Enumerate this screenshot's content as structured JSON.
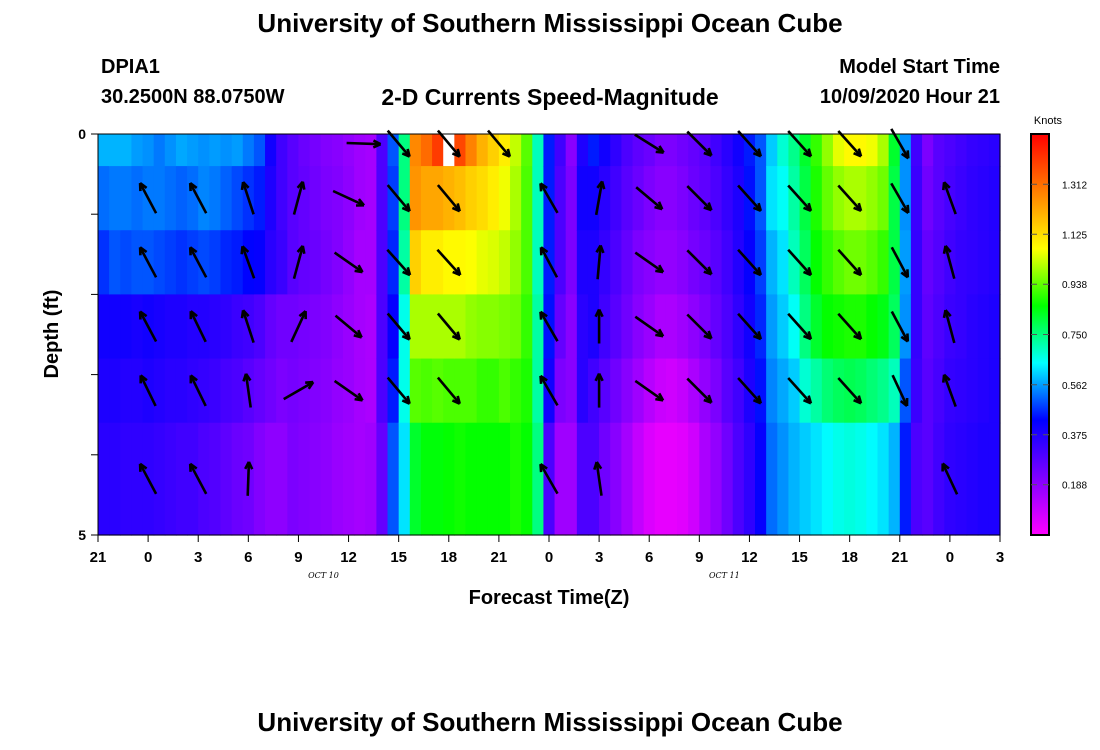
{
  "title": "University of Southern Mississippi Ocean Cube",
  "footer_title": "University of Southern Mississippi Ocean Cube",
  "station": {
    "id": "DPIA1",
    "location": "30.2500N 88.0750W"
  },
  "model_start": {
    "label": "Model Start Time",
    "value": "10/09/2020 Hour 21"
  },
  "chart_data": {
    "type": "heatmap",
    "title": "2-D Currents Speed-Magnitude",
    "xlabel": "Forecast Time(Z)",
    "ylabel": "Depth (ft)",
    "x_ticks": [
      "21",
      "0",
      "3",
      "6",
      "9",
      "12",
      "15",
      "18",
      "21",
      "0",
      "3",
      "6",
      "9",
      "12",
      "15",
      "18",
      "21",
      "0",
      "3"
    ],
    "date_labels": [
      {
        "text": "OCT 10",
        "tick_index": 4.5
      },
      {
        "text": "OCT 11",
        "tick_index": 12.5
      }
    ],
    "y_ticks": [
      "0",
      "5"
    ],
    "ylim": [
      0,
      5
    ],
    "colorbar": {
      "label": "Knots",
      "ticks": [
        "0.188",
        "0.375",
        "0.562",
        "0.750",
        "0.938",
        "1.125",
        "1.312"
      ],
      "range": [
        0,
        1.5
      ],
      "colors": [
        "#ff00ff",
        "#7f00ff",
        "#0000ff",
        "#00ffff",
        "#00ff00",
        "#ffff00",
        "#ff7f00",
        "#ff0000"
      ]
    },
    "columns": [
      {
        "x": 0,
        "v": [
          0.58,
          0.52,
          0.47,
          0.4,
          0.38,
          0.36
        ]
      },
      {
        "x": 1,
        "v": [
          0.58,
          0.53,
          0.5,
          0.4,
          0.38,
          0.36
        ]
      },
      {
        "x": 2,
        "v": [
          0.58,
          0.53,
          0.49,
          0.4,
          0.37,
          0.35
        ]
      },
      {
        "x": 3,
        "v": [
          0.56,
          0.52,
          0.5,
          0.39,
          0.37,
          0.35
        ]
      },
      {
        "x": 4,
        "v": [
          0.55,
          0.53,
          0.5,
          0.4,
          0.38,
          0.35
        ]
      },
      {
        "x": 5,
        "v": [
          0.53,
          0.53,
          0.49,
          0.39,
          0.37,
          0.34
        ]
      },
      {
        "x": 6,
        "v": [
          0.55,
          0.52,
          0.48,
          0.38,
          0.36,
          0.33
        ]
      },
      {
        "x": 7,
        "v": [
          0.57,
          0.51,
          0.47,
          0.38,
          0.36,
          0.32
        ]
      },
      {
        "x": 8,
        "v": [
          0.56,
          0.52,
          0.48,
          0.37,
          0.35,
          0.32
        ]
      },
      {
        "x": 9,
        "v": [
          0.55,
          0.54,
          0.49,
          0.37,
          0.34,
          0.3
        ]
      },
      {
        "x": 10,
        "v": [
          0.56,
          0.53,
          0.48,
          0.36,
          0.33,
          0.29
        ]
      },
      {
        "x": 11,
        "v": [
          0.55,
          0.51,
          0.46,
          0.35,
          0.31,
          0.27
        ]
      },
      {
        "x": 12,
        "v": [
          0.56,
          0.49,
          0.45,
          0.33,
          0.3,
          0.25
        ]
      },
      {
        "x": 13,
        "v": [
          0.53,
          0.47,
          0.43,
          0.32,
          0.28,
          0.24
        ]
      },
      {
        "x": 14,
        "v": [
          0.5,
          0.45,
          0.42,
          0.3,
          0.26,
          0.21
        ]
      },
      {
        "x": 15,
        "v": [
          0.4,
          0.38,
          0.36,
          0.26,
          0.24,
          0.19
        ]
      },
      {
        "x": 16,
        "v": [
          0.32,
          0.32,
          0.33,
          0.24,
          0.22,
          0.19
        ]
      },
      {
        "x": 17,
        "v": [
          0.28,
          0.28,
          0.28,
          0.24,
          0.23,
          0.22
        ]
      },
      {
        "x": 18,
        "v": [
          0.25,
          0.26,
          0.26,
          0.23,
          0.22,
          0.21
        ]
      },
      {
        "x": 19,
        "v": [
          0.23,
          0.24,
          0.25,
          0.22,
          0.21,
          0.2
        ]
      },
      {
        "x": 20,
        "v": [
          0.21,
          0.22,
          0.23,
          0.21,
          0.2,
          0.19
        ]
      },
      {
        "x": 21,
        "v": [
          0.2,
          0.21,
          0.21,
          0.19,
          0.18,
          0.17
        ]
      },
      {
        "x": 22,
        "v": [
          0.18,
          0.19,
          0.18,
          0.17,
          0.17,
          0.16
        ]
      },
      {
        "x": 23,
        "v": [
          0.16,
          0.16,
          0.15,
          0.15,
          0.15,
          0.15
        ]
      },
      {
        "x": 24,
        "v": [
          0.15,
          0.15,
          0.15,
          0.14,
          0.14,
          0.16
        ]
      },
      {
        "x": 25,
        "v": [
          0.3,
          0.3,
          0.3,
          0.3,
          0.3,
          0.26
        ]
      },
      {
        "x": 26,
        "v": [
          0.5,
          0.48,
          0.46,
          0.42,
          0.45,
          0.5
        ]
      },
      {
        "x": 27,
        "v": [
          0.75,
          0.75,
          0.72,
          0.66,
          0.66,
          0.62
        ]
      },
      {
        "x": 28,
        "v": [
          1.27,
          1.25,
          1.15,
          1.0,
          0.93,
          0.82
        ]
      },
      {
        "x": 29,
        "v": [
          1.32,
          1.22,
          1.1,
          1.0,
          0.92,
          0.85
        ]
      },
      {
        "x": 30,
        "v": [
          1.4,
          1.22,
          1.1,
          1.0,
          0.93,
          0.85
        ]
      },
      {
        "x": 31,
        "v": [
          1.42,
          1.2,
          1.08,
          1.0,
          0.92,
          0.86
        ]
      },
      {
        "x": 32,
        "v": [
          1.38,
          1.18,
          1.08,
          1.0,
          0.92,
          0.87
        ]
      },
      {
        "x": 33,
        "v": [
          1.28,
          1.15,
          1.07,
          0.98,
          0.92,
          0.86
        ]
      },
      {
        "x": 34,
        "v": [
          1.2,
          1.13,
          1.05,
          0.97,
          0.9,
          0.86
        ]
      },
      {
        "x": 35,
        "v": [
          1.15,
          1.1,
          1.04,
          0.97,
          0.9,
          0.86
        ]
      },
      {
        "x": 36,
        "v": [
          1.1,
          1.06,
          1.02,
          0.96,
          0.92,
          0.86
        ]
      },
      {
        "x": 37,
        "v": [
          1.02,
          1.0,
          0.98,
          0.95,
          0.9,
          0.88
        ]
      },
      {
        "x": 38,
        "v": [
          0.93,
          0.92,
          0.92,
          0.9,
          0.88,
          0.86
        ]
      },
      {
        "x": 39,
        "v": [
          0.7,
          0.7,
          0.7,
          0.72,
          0.72,
          0.75
        ]
      },
      {
        "x": 40,
        "v": [
          0.45,
          0.45,
          0.45,
          0.44,
          0.4,
          0.3
        ]
      },
      {
        "x": 41,
        "v": [
          0.32,
          0.3,
          0.3,
          0.26,
          0.22,
          0.16
        ]
      },
      {
        "x": 42,
        "v": [
          0.2,
          0.22,
          0.22,
          0.2,
          0.2,
          0.16
        ]
      },
      {
        "x": 43,
        "v": [
          0.38,
          0.4,
          0.38,
          0.36,
          0.36,
          0.3
        ]
      },
      {
        "x": 44,
        "v": [
          0.45,
          0.4,
          0.38,
          0.38,
          0.32,
          0.3
        ]
      },
      {
        "x": 45,
        "v": [
          0.4,
          0.36,
          0.34,
          0.32,
          0.28,
          0.24
        ]
      },
      {
        "x": 46,
        "v": [
          0.35,
          0.32,
          0.3,
          0.28,
          0.24,
          0.2
        ]
      },
      {
        "x": 47,
        "v": [
          0.3,
          0.28,
          0.26,
          0.24,
          0.2,
          0.15
        ]
      },
      {
        "x": 48,
        "v": [
          0.27,
          0.25,
          0.22,
          0.2,
          0.16,
          0.1
        ]
      },
      {
        "x": 49,
        "v": [
          0.25,
          0.22,
          0.2,
          0.17,
          0.12,
          0.06
        ]
      },
      {
        "x": 50,
        "v": [
          0.22,
          0.2,
          0.18,
          0.14,
          0.09,
          0.04
        ]
      },
      {
        "x": 51,
        "v": [
          0.22,
          0.2,
          0.18,
          0.14,
          0.08,
          0.04
        ]
      },
      {
        "x": 52,
        "v": [
          0.24,
          0.22,
          0.2,
          0.16,
          0.1,
          0.05
        ]
      },
      {
        "x": 53,
        "v": [
          0.26,
          0.25,
          0.23,
          0.19,
          0.14,
          0.08
        ]
      },
      {
        "x": 54,
        "v": [
          0.28,
          0.27,
          0.25,
          0.22,
          0.18,
          0.14
        ]
      },
      {
        "x": 55,
        "v": [
          0.32,
          0.3,
          0.28,
          0.26,
          0.22,
          0.18
        ]
      },
      {
        "x": 56,
        "v": [
          0.36,
          0.34,
          0.32,
          0.3,
          0.28,
          0.24
        ]
      },
      {
        "x": 57,
        "v": [
          0.4,
          0.38,
          0.37,
          0.35,
          0.32,
          0.3
        ]
      },
      {
        "x": 58,
        "v": [
          0.45,
          0.44,
          0.42,
          0.4,
          0.38,
          0.35
        ]
      },
      {
        "x": 59,
        "v": [
          0.5,
          0.5,
          0.48,
          0.46,
          0.44,
          0.42
        ]
      },
      {
        "x": 60,
        "v": [
          0.6,
          0.62,
          0.58,
          0.56,
          0.54,
          0.52
        ]
      },
      {
        "x": 61,
        "v": [
          0.68,
          0.65,
          0.62,
          0.6,
          0.57,
          0.55
        ]
      },
      {
        "x": 62,
        "v": [
          0.74,
          0.72,
          0.7,
          0.65,
          0.6,
          0.58
        ]
      },
      {
        "x": 63,
        "v": [
          0.82,
          0.8,
          0.78,
          0.75,
          0.68,
          0.6
        ]
      },
      {
        "x": 64,
        "v": [
          0.9,
          0.88,
          0.86,
          0.82,
          0.72,
          0.62
        ]
      },
      {
        "x": 65,
        "v": [
          0.98,
          0.94,
          0.9,
          0.86,
          0.76,
          0.64
        ]
      },
      {
        "x": 66,
        "v": [
          1.05,
          0.98,
          0.93,
          0.87,
          0.78,
          0.66
        ]
      },
      {
        "x": 67,
        "v": [
          1.08,
          1.0,
          0.95,
          0.88,
          0.79,
          0.67
        ]
      },
      {
        "x": 68,
        "v": [
          1.08,
          1.0,
          0.95,
          0.88,
          0.78,
          0.66
        ]
      },
      {
        "x": 69,
        "v": [
          1.06,
          0.98,
          0.93,
          0.86,
          0.76,
          0.64
        ]
      },
      {
        "x": 70,
        "v": [
          1.0,
          0.95,
          0.9,
          0.84,
          0.74,
          0.62
        ]
      },
      {
        "x": 71,
        "v": [
          0.82,
          0.8,
          0.8,
          0.78,
          0.7,
          0.58
        ]
      },
      {
        "x": 72,
        "v": [
          0.55,
          0.55,
          0.56,
          0.55,
          0.5,
          0.45
        ]
      },
      {
        "x": 73,
        "v": [
          0.32,
          0.33,
          0.34,
          0.34,
          0.33,
          0.3
        ]
      },
      {
        "x": 74,
        "v": [
          0.22,
          0.24,
          0.26,
          0.27,
          0.28,
          0.28
        ]
      },
      {
        "x": 75,
        "v": [
          0.28,
          0.28,
          0.29,
          0.3,
          0.31,
          0.32
        ]
      },
      {
        "x": 76,
        "v": [
          0.3,
          0.31,
          0.32,
          0.33,
          0.34,
          0.35
        ]
      },
      {
        "x": 77,
        "v": [
          0.32,
          0.33,
          0.34,
          0.34,
          0.35,
          0.36
        ]
      },
      {
        "x": 78,
        "v": [
          0.34,
          0.35,
          0.35,
          0.36,
          0.36,
          0.37
        ]
      },
      {
        "x": 79,
        "v": [
          0.35,
          0.36,
          0.36,
          0.37,
          0.37,
          0.38
        ]
      },
      {
        "x": 80,
        "v": [
          0.36,
          0.37,
          0.37,
          0.38,
          0.38,
          0.38
        ]
      }
    ],
    "arrows": [
      {
        "time": 1,
        "angles": [
          null,
          -28,
          -28,
          -28,
          -26,
          -28
        ]
      },
      {
        "time": 2,
        "angles": [
          null,
          -28,
          -28,
          -26,
          -26,
          -28
        ]
      },
      {
        "time": 3,
        "angles": [
          null,
          -18,
          -20,
          -18,
          -8,
          2
        ]
      },
      {
        "time": 4,
        "angles": [
          null,
          15,
          15,
          25,
          60,
          null
        ]
      },
      {
        "time": 5,
        "angles": [
          null,
          115,
          125,
          130,
          125,
          null
        ]
      },
      {
        "time": 5.3,
        "angles": [
          92,
          null,
          null,
          null,
          null,
          null
        ]
      },
      {
        "time": 6,
        "angles": [
          140,
          140,
          138,
          140,
          140,
          null
        ]
      },
      {
        "time": 7,
        "angles": [
          140,
          140,
          138,
          140,
          140,
          null
        ]
      },
      {
        "time": 8,
        "angles": [
          140,
          null,
          null,
          null,
          null,
          null
        ]
      },
      {
        "time": 9,
        "angles": [
          null,
          -30,
          -28,
          -30,
          -30,
          -30
        ]
      },
      {
        "time": 10,
        "angles": [
          null,
          10,
          5,
          0,
          0,
          -8
        ]
      },
      {
        "time": 11,
        "angles": [
          122,
          130,
          125,
          125,
          125,
          null
        ]
      },
      {
        "time": 12,
        "angles": [
          135,
          135,
          135,
          135,
          135,
          null
        ]
      },
      {
        "time": 13,
        "angles": [
          138,
          138,
          138,
          138,
          138,
          null
        ]
      },
      {
        "time": 14,
        "angles": [
          138,
          138,
          138,
          138,
          138,
          null
        ]
      },
      {
        "time": 15,
        "angles": [
          138,
          138,
          138,
          138,
          138,
          null
        ]
      },
      {
        "time": 16,
        "angles": [
          150,
          150,
          152,
          152,
          155,
          null
        ]
      },
      {
        "time": 17,
        "angles": [
          null,
          -20,
          -15,
          -15,
          -20,
          -25
        ]
      }
    ],
    "white_marker_x": 31
  }
}
